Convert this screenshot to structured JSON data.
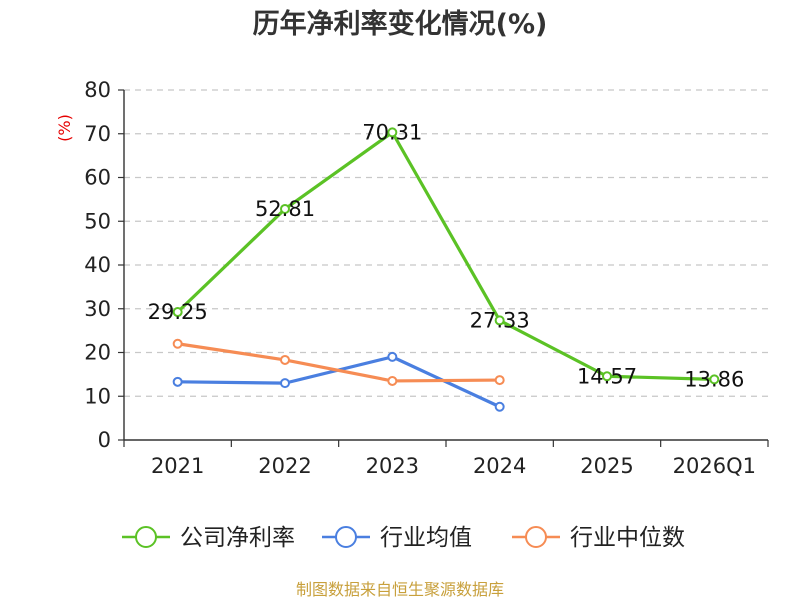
{
  "chart_data": {
    "type": "line",
    "title": "历年净利率变化情况(%)",
    "ylabel": "(%)",
    "xlabel": "",
    "ylim": [
      0,
      80
    ],
    "yticks": [
      0,
      10,
      20,
      30,
      40,
      50,
      60,
      70,
      80
    ],
    "grid": true,
    "legend_position": "bottom",
    "categories": [
      "2021",
      "2022",
      "2023",
      "2024",
      "2025",
      "2026Q1"
    ],
    "series": [
      {
        "name": "公司净利率",
        "color": "#5bc225",
        "values": [
          29.25,
          52.81,
          70.31,
          27.33,
          14.57,
          13.86
        ],
        "labels": [
          "29.25",
          "52.81",
          "70.31",
          "27.33",
          "14.57",
          "13.86"
        ]
      },
      {
        "name": "行业均值",
        "color": "#4a7fe0",
        "values": [
          13.3,
          13.0,
          19.0,
          7.6,
          null,
          null
        ]
      },
      {
        "name": "行业中位数",
        "color": "#f68c54",
        "values": [
          22.0,
          18.3,
          13.5,
          13.7,
          null,
          null
        ]
      }
    ]
  },
  "footer": {
    "source": "制图数据来自恒生聚源数据库"
  }
}
